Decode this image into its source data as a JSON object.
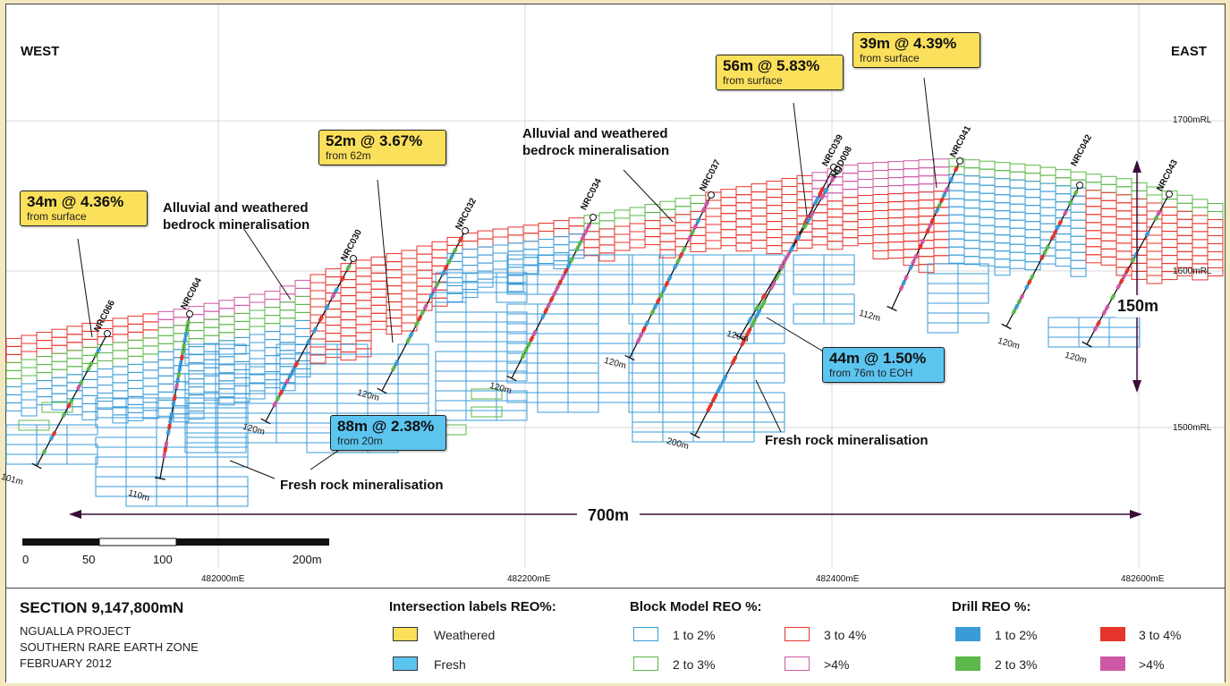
{
  "header": {
    "west": "WEST",
    "east": "EAST"
  },
  "rl_labels": [
    "1700mRL",
    "1600mRL",
    "1500mRL"
  ],
  "easting_labels": [
    "482000mE",
    "482200mE",
    "482400mE",
    "482600mE"
  ],
  "scale_bar": {
    "labels": [
      "0",
      "50",
      "100",
      "200m"
    ]
  },
  "dimensions": {
    "width": "700m",
    "height": "150m"
  },
  "drill_holes": [
    {
      "name": "NRC066",
      "depth": "101m"
    },
    {
      "name": "NRC064",
      "depth": "110m"
    },
    {
      "name": "NRC030",
      "depth": "120m"
    },
    {
      "name": "NRC032",
      "depth": "120m"
    },
    {
      "name": "NRC034",
      "depth": "120m"
    },
    {
      "name": "NRC037",
      "depth": "120m"
    },
    {
      "name": "NRC039",
      "depth": "200m"
    },
    {
      "name": "NDD008",
      "depth": "120m"
    },
    {
      "name": "NRC041",
      "depth": "112m"
    },
    {
      "name": "NRC042",
      "depth": "120m"
    },
    {
      "name": "NRC043",
      "depth": "120m"
    }
  ],
  "intersections": [
    {
      "value": "34m @ 4.36%",
      "detail": "from surface",
      "type": "Weathered"
    },
    {
      "value": "52m @ 3.67%",
      "detail": "from 62m",
      "type": "Weathered"
    },
    {
      "value": "56m @ 5.83%",
      "detail": "from surface",
      "type": "Weathered"
    },
    {
      "value": "39m @ 4.39%",
      "detail": "from surface",
      "type": "Weathered"
    },
    {
      "value": "88m @ 2.38%",
      "detail": "from 20m",
      "type": "Fresh"
    },
    {
      "value": "44m @ 1.50%",
      "detail": "from 76m to EOH",
      "type": "Fresh"
    }
  ],
  "zones": [
    {
      "line1": "Alluvial and weathered",
      "line2": "bedrock mineralisation"
    },
    {
      "line1": "Alluvial and weathered",
      "line2": "bedrock mineralisation"
    },
    {
      "line1": "Fresh rock mineralisation"
    },
    {
      "line1": "Fresh rock mineralisation"
    }
  ],
  "legend": {
    "section_title": "SECTION 9,147,800mN",
    "project_lines": [
      "NGUALLA PROJECT",
      "SOUTHERN RARE EARTH ZONE",
      "FEBRUARY 2012"
    ],
    "intersection_labels": {
      "title": "Intersection labels REO%:",
      "items": [
        {
          "label": "Weathered",
          "color": "#fbe05b"
        },
        {
          "label": "Fresh",
          "color": "#5bc5f0"
        }
      ]
    },
    "block_model": {
      "title": "Block Model REO %:",
      "items": [
        {
          "label": "1 to 2%",
          "color": "#3a9bd8"
        },
        {
          "label": "2 to 3%",
          "color": "#5cb84a"
        },
        {
          "label": "3 to 4%",
          "color": "#e5352c"
        },
        {
          "label": ">4%",
          "color": "#cf58a6"
        }
      ]
    },
    "drill_reo": {
      "title": "Drill REO %:",
      "items": [
        {
          "label": "1 to 2%",
          "color": "#3a9bd8"
        },
        {
          "label": "2 to 3%",
          "color": "#5cb84a"
        },
        {
          "label": "3 to 4%",
          "color": "#e5352c"
        },
        {
          "label": ">4%",
          "color": "#cf58a6"
        }
      ]
    }
  }
}
